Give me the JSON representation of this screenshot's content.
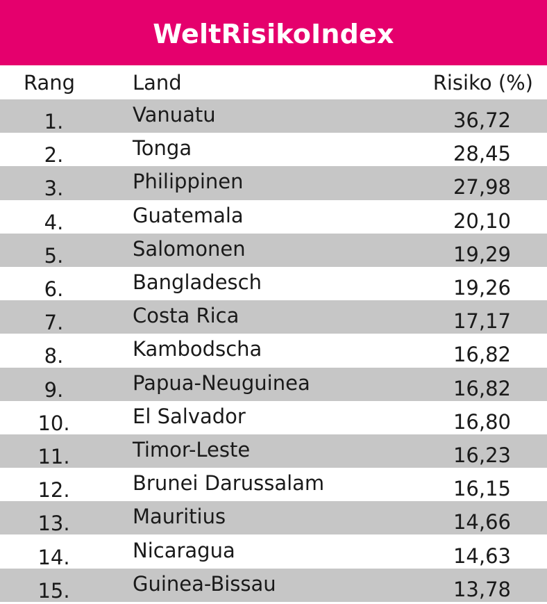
{
  "title": "WeltRisikoIndex",
  "colors": {
    "title_background": "#e5006d",
    "title_text": "#ffffff",
    "row_shade": "#c6c6c6"
  },
  "chart_data": {
    "type": "table",
    "title": "WeltRisikoIndex",
    "columns": [
      "Rang",
      "Land",
      "Risiko (%)"
    ],
    "rows": [
      {
        "rank": "1.",
        "country": "Vanuatu",
        "risk": "36,72"
      },
      {
        "rank": "2.",
        "country": "Tonga",
        "risk": "28,45"
      },
      {
        "rank": "3.",
        "country": "Philippinen",
        "risk": "27,98"
      },
      {
        "rank": "4.",
        "country": "Guatemala",
        "risk": "20,10"
      },
      {
        "rank": "5.",
        "country": "Salomonen",
        "risk": "19,29"
      },
      {
        "rank": "6.",
        "country": "Bangladesch",
        "risk": "19,26"
      },
      {
        "rank": "7.",
        "country": "Costa Rica",
        "risk": "17,17"
      },
      {
        "rank": "8.",
        "country": "Kambodscha",
        "risk": "16,82"
      },
      {
        "rank": "9.",
        "country": "Papua-Neuguinea",
        "risk": "16,82"
      },
      {
        "rank": "10.",
        "country": "El Salvador",
        "risk": "16,80"
      },
      {
        "rank": "11.",
        "country": "Timor-Leste",
        "risk": "16,23"
      },
      {
        "rank": "12.",
        "country": "Brunei Darussalam",
        "risk": "16,15"
      },
      {
        "rank": "13.",
        "country": "Mauritius",
        "risk": "14,66"
      },
      {
        "rank": "14.",
        "country": "Nicaragua",
        "risk": "14,63"
      },
      {
        "rank": "15.",
        "country": "Guinea-Bissau",
        "risk": "13,78"
      }
    ]
  }
}
